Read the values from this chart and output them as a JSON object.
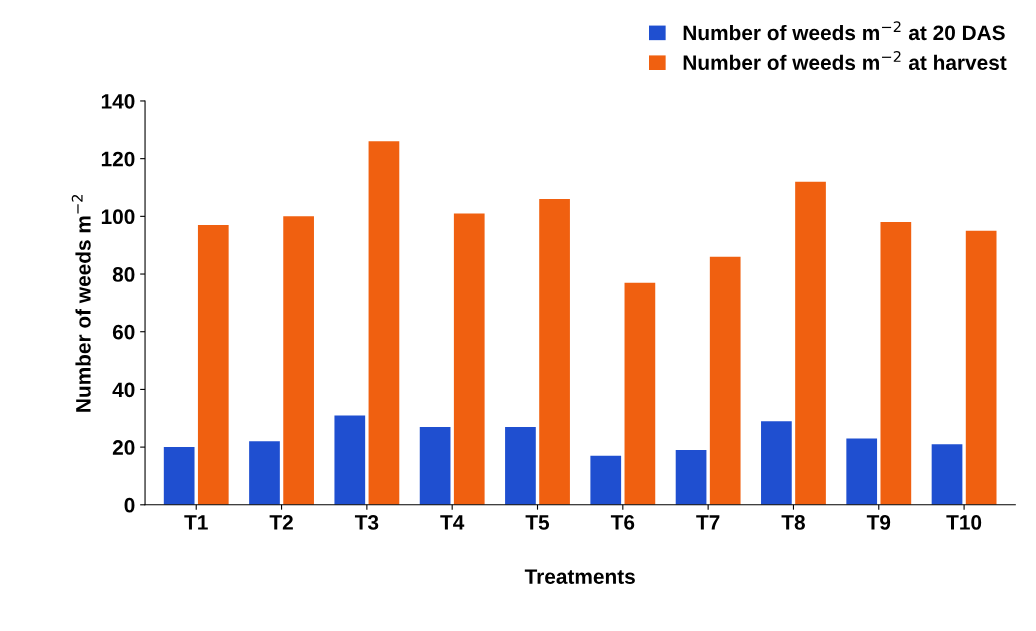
{
  "chart_data": {
    "type": "bar",
    "xlabel": "Treatments",
    "ylabel": "Number of weeds m$^{−2}$",
    "categories": [
      "T1",
      "T2",
      "T3",
      "T4",
      "T5",
      "T6",
      "T7",
      "T8",
      "T9",
      "T10"
    ],
    "series": [
      {
        "name": "Number of weeds m$^{−2}$ at 20 DAS",
        "color": "#1f4fd0",
        "values": [
          20,
          22,
          31,
          27,
          27,
          17,
          19,
          29,
          23,
          21
        ]
      },
      {
        "name": "Number of weeds m$^{−2}$ at harvest",
        "color": "#f06010",
        "values": [
          97,
          100,
          126,
          101,
          106,
          77,
          86,
          112,
          98,
          95
        ]
      }
    ],
    "ylim": [
      0,
      140
    ],
    "yticks": [
      0,
      20,
      40,
      60,
      80,
      100,
      120,
      140
    ],
    "grid": false,
    "legend": "top right"
  }
}
